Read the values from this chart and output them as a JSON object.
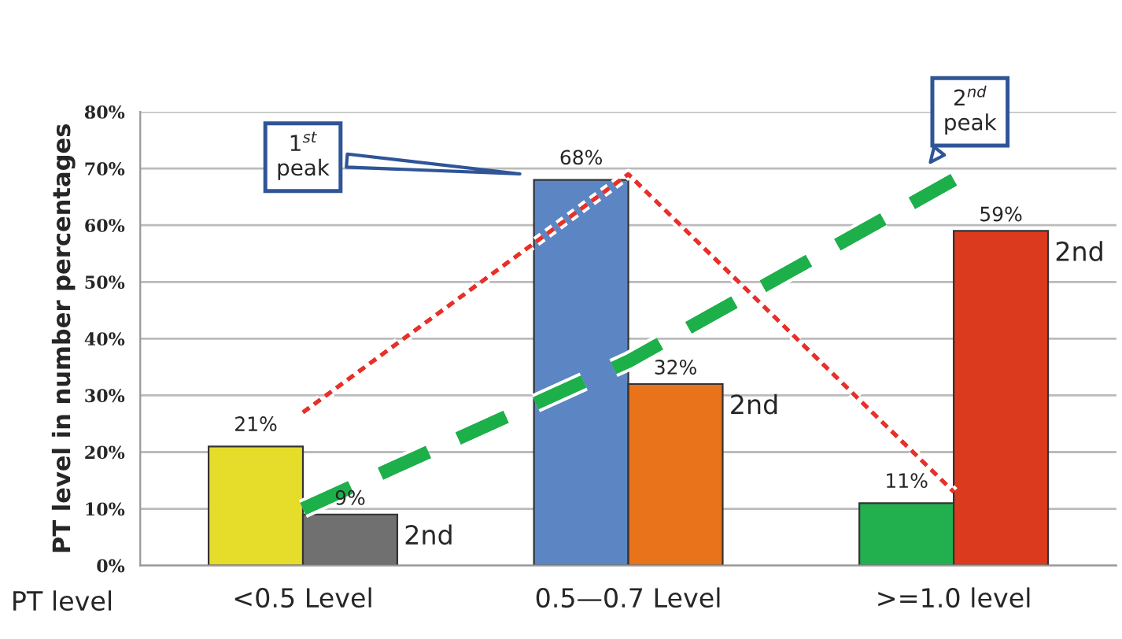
{
  "chart_data": {
    "type": "bar",
    "xlabel": "PT level",
    "ylabel": "PT level in number percentages",
    "categories": [
      "<0.5 Level",
      "0.5—0.7 Level",
      ">=1.0 level"
    ],
    "series": [
      {
        "colors": [
          "#e6dc2a",
          "#5b86c3",
          "#22b04f"
        ],
        "values": [
          21,
          68,
          11
        ],
        "value_labels": [
          "21%",
          "68%",
          "11%"
        ]
      },
      {
        "colors": [
          "#707070",
          "#e8731a",
          "#dc3a1e"
        ],
        "values": [
          9,
          32,
          59
        ],
        "value_labels": [
          "9%",
          "32%",
          "59%"
        ]
      },
      {
        "type": "line",
        "color": "#e8302a",
        "line_style": "dotted",
        "values": [
          27,
          69,
          13
        ]
      },
      {
        "type": "line",
        "color": "#1db04a",
        "line_style": "dashed",
        "values": [
          10,
          36,
          68
        ]
      }
    ],
    "annotations": [
      "1$^{st}$\npeak",
      "2$^{nd}$\npeak",
      "2nd",
      "2nd",
      "2nd"
    ],
    "ylim": [
      0,
      80
    ],
    "yticks": [
      {
        "value": 0,
        "label": "0%"
      },
      {
        "value": 10,
        "label": "10%"
      },
      {
        "value": 20,
        "label": "20%"
      },
      {
        "value": 30,
        "label": "30%"
      },
      {
        "value": 40,
        "label": "40%"
      },
      {
        "value": 50,
        "label": "50%"
      },
      {
        "value": 60,
        "label": "60%"
      },
      {
        "value": 70,
        "label": "70%"
      },
      {
        "value": 80,
        "label": "80%"
      }
    ],
    "grid": "y"
  }
}
